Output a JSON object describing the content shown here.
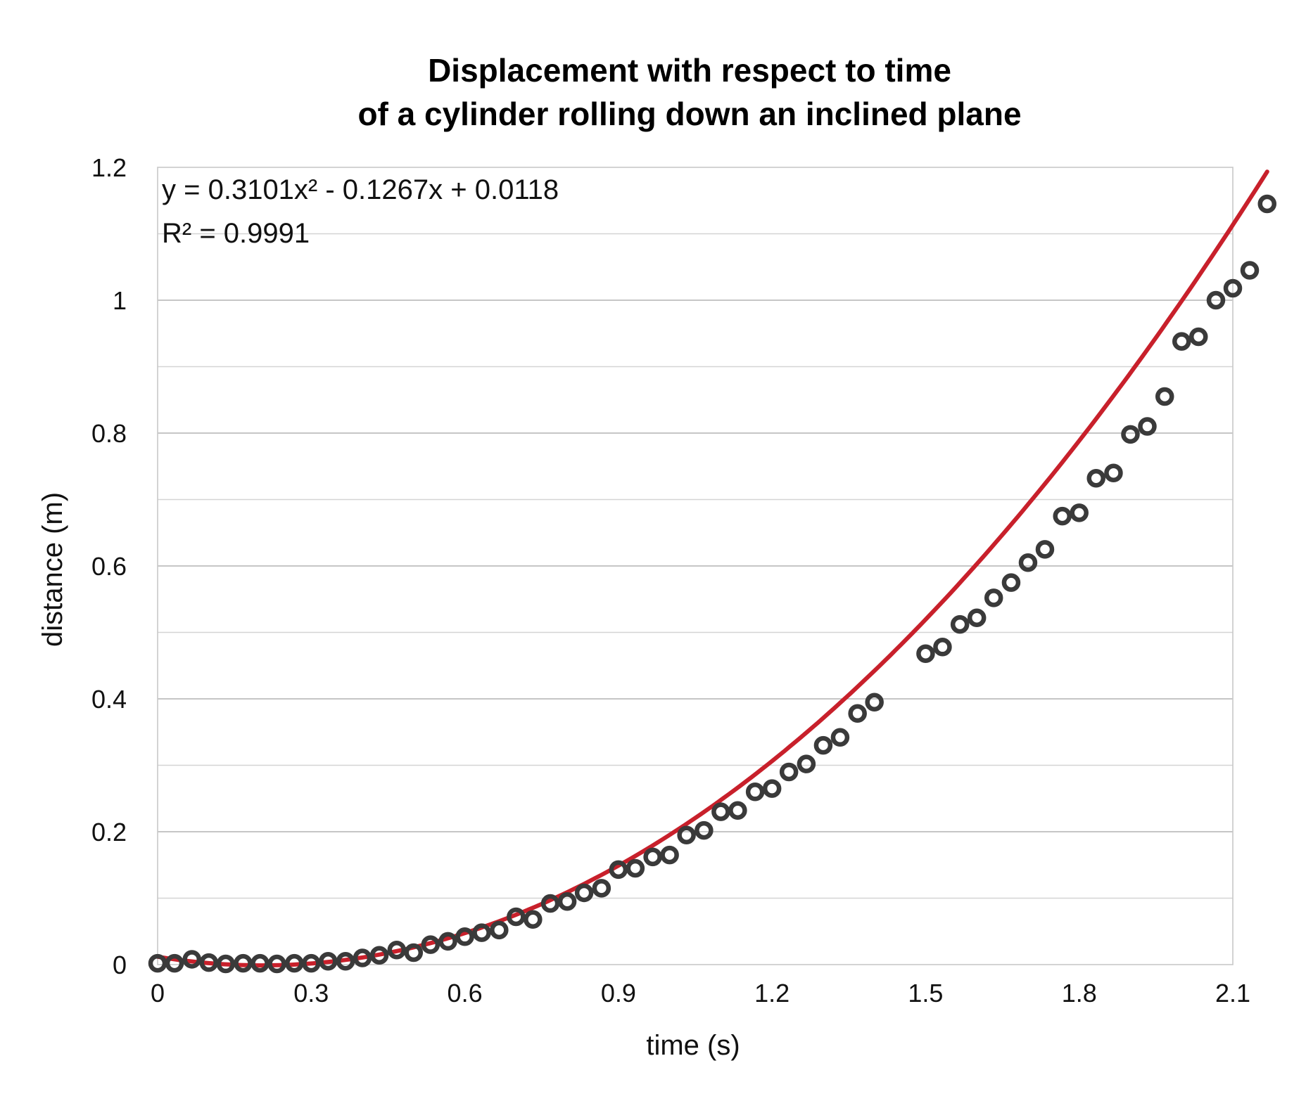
{
  "chart_data": {
    "type": "scatter",
    "title_lines": [
      "Displacement with respect to time",
      "of a cylinder rolling down an inclined plane"
    ],
    "xlabel": "time (s)",
    "ylabel": "distance (m)",
    "xlim": [
      0,
      2.1
    ],
    "ylim": [
      0,
      1.2
    ],
    "x_ticks": [
      0,
      0.3,
      0.6,
      0.9,
      1.2,
      1.5,
      1.8,
      2.1
    ],
    "x_tick_labels": [
      "0",
      "0.3",
      "0.6",
      "0.9",
      "1.2",
      "1.5",
      "1.8",
      "2.1"
    ],
    "y_ticks": [
      0,
      0.2,
      0.4,
      0.6,
      0.8,
      1,
      1.2
    ],
    "y_tick_labels": [
      "0",
      "0.2",
      "0.4",
      "0.6",
      "0.8",
      "1",
      "1.2"
    ],
    "y_minor_gridlines": [
      0.1,
      0.3,
      0.5,
      0.7,
      0.9,
      1.1
    ],
    "grid": true,
    "legend": "none",
    "trendline": {
      "type": "polynomial",
      "order": 2,
      "coefficients": [
        0.3101,
        -0.1267,
        0.0118
      ],
      "equation_text": "y = 0.3101x² - 0.1267x + 0.0118",
      "r2_text": "R² = 0.9991",
      "color": "#c8202b"
    },
    "marker_color": "#3a3a3a",
    "points": [
      [
        0.0,
        0.002
      ],
      [
        0.033,
        0.002
      ],
      [
        0.067,
        0.008
      ],
      [
        0.1,
        0.003
      ],
      [
        0.133,
        0.001
      ],
      [
        0.167,
        0.002
      ],
      [
        0.2,
        0.002
      ],
      [
        0.233,
        0.001
      ],
      [
        0.267,
        0.002
      ],
      [
        0.3,
        0.002
      ],
      [
        0.333,
        0.005
      ],
      [
        0.367,
        0.005
      ],
      [
        0.4,
        0.01
      ],
      [
        0.433,
        0.014
      ],
      [
        0.467,
        0.022
      ],
      [
        0.5,
        0.018
      ],
      [
        0.533,
        0.03
      ],
      [
        0.567,
        0.035
      ],
      [
        0.6,
        0.042
      ],
      [
        0.633,
        0.048
      ],
      [
        0.667,
        0.052
      ],
      [
        0.7,
        0.072
      ],
      [
        0.733,
        0.068
      ],
      [
        0.767,
        0.092
      ],
      [
        0.8,
        0.095
      ],
      [
        0.833,
        0.108
      ],
      [
        0.867,
        0.115
      ],
      [
        0.9,
        0.143
      ],
      [
        0.933,
        0.145
      ],
      [
        0.967,
        0.162
      ],
      [
        1.0,
        0.165
      ],
      [
        1.033,
        0.195
      ],
      [
        1.067,
        0.202
      ],
      [
        1.1,
        0.23
      ],
      [
        1.133,
        0.232
      ],
      [
        1.167,
        0.26
      ],
      [
        1.2,
        0.265
      ],
      [
        1.233,
        0.29
      ],
      [
        1.267,
        0.302
      ],
      [
        1.3,
        0.33
      ],
      [
        1.333,
        0.342
      ],
      [
        1.367,
        0.378
      ],
      [
        1.4,
        0.395
      ],
      [
        1.5,
        0.468
      ],
      [
        1.533,
        0.478
      ],
      [
        1.567,
        0.512
      ],
      [
        1.6,
        0.522
      ],
      [
        1.633,
        0.552
      ],
      [
        1.667,
        0.575
      ],
      [
        1.7,
        0.605
      ],
      [
        1.733,
        0.625
      ],
      [
        1.767,
        0.675
      ],
      [
        1.8,
        0.68
      ],
      [
        1.833,
        0.732
      ],
      [
        1.867,
        0.74
      ],
      [
        1.9,
        0.798
      ],
      [
        1.933,
        0.81
      ],
      [
        1.967,
        0.855
      ],
      [
        2.0,
        0.938
      ],
      [
        2.033,
        0.945
      ],
      [
        2.067,
        1.0
      ],
      [
        2.1,
        1.018
      ],
      [
        2.133,
        1.045
      ],
      [
        2.167,
        1.145
      ]
    ]
  }
}
